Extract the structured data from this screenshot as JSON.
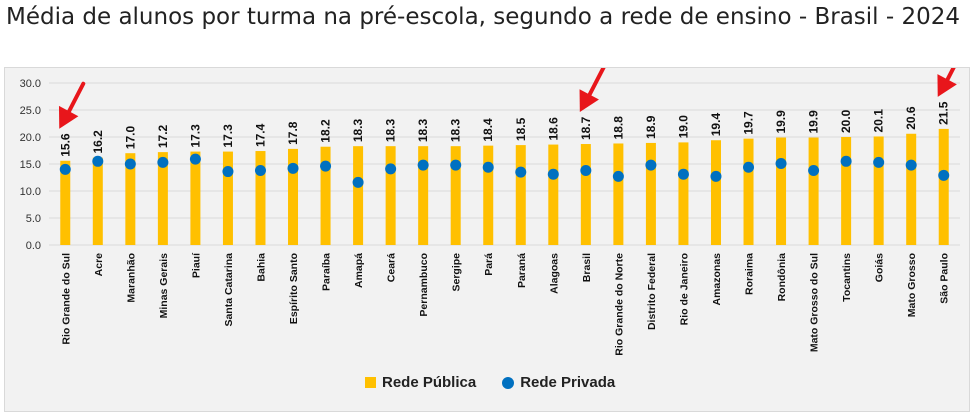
{
  "chart_data": {
    "type": "bar",
    "title": "Média de alunos por turma na pré-escola, segundo a rede de ensino - Brasil - 2024",
    "categories": [
      "Rio Grande do Sul",
      "Acre",
      "Maranhão",
      "Minas Gerais",
      "Piauí",
      "Santa Catarina",
      "Bahia",
      "Espírito Santo",
      "Paraíba",
      "Amapá",
      "Ceará",
      "Pernambuco",
      "Sergipe",
      "Pará",
      "Paraná",
      "Alagoas",
      "Brasil",
      "Rio Grande do Norte",
      "Distrito Federal",
      "Rio de Janeiro",
      "Amazonas",
      "Roraima",
      "Rondônia",
      "Mato Grosso do Sul",
      "Tocantins",
      "Goiás",
      "Mato Grosso",
      "São Paulo"
    ],
    "series": [
      {
        "name": "Rede Pública",
        "type": "bar",
        "color": "#ffc000",
        "values": [
          15.6,
          16.2,
          17.0,
          17.2,
          17.3,
          17.3,
          17.4,
          17.8,
          18.2,
          18.3,
          18.3,
          18.3,
          18.3,
          18.4,
          18.5,
          18.6,
          18.7,
          18.8,
          18.9,
          19.0,
          19.4,
          19.7,
          19.9,
          19.9,
          20.0,
          20.1,
          20.6,
          21.5
        ],
        "value_labels": [
          "15.6",
          "16.2",
          "17.0",
          "17.2",
          "17.3",
          "17.3",
          "17.4",
          "17.8",
          "18.2",
          "18.3",
          "18.3",
          "18.3",
          "18.3",
          "18.4",
          "18.5",
          "18.6",
          "18.7",
          "18.8",
          "18.9",
          "19.0",
          "19.4",
          "19.7",
          "19.9",
          "19.9",
          "20.0",
          "20.1",
          "20.6",
          "21.5"
        ]
      },
      {
        "name": "Rede Privada",
        "type": "scatter",
        "color": "#0070c0",
        "values": [
          14.0,
          15.5,
          15.0,
          15.3,
          15.9,
          13.6,
          13.8,
          14.2,
          14.6,
          11.6,
          14.1,
          14.8,
          14.8,
          14.4,
          13.5,
          13.1,
          13.8,
          12.7,
          14.8,
          13.1,
          12.7,
          14.4,
          15.1,
          13.8,
          15.5,
          15.3,
          14.8,
          12.9
        ]
      }
    ],
    "yticks": [
      "0.0",
      "5.0",
      "10.0",
      "15.0",
      "20.0",
      "25.0",
      "30.0"
    ],
    "ylim": [
      0,
      30
    ],
    "grid": true,
    "legend_position": "bottom",
    "annotations": [
      "red-arrow:Rio Grande do Sul",
      "red-arrow:Brasil",
      "red-arrow:São Paulo"
    ]
  },
  "legend": {
    "public": "Rede Pública",
    "private": "Rede Privada"
  },
  "colors": {
    "bar": "#ffc000",
    "dot": "#0070c0",
    "arrow": "#e8161b",
    "grid": "#d9d9d9"
  }
}
